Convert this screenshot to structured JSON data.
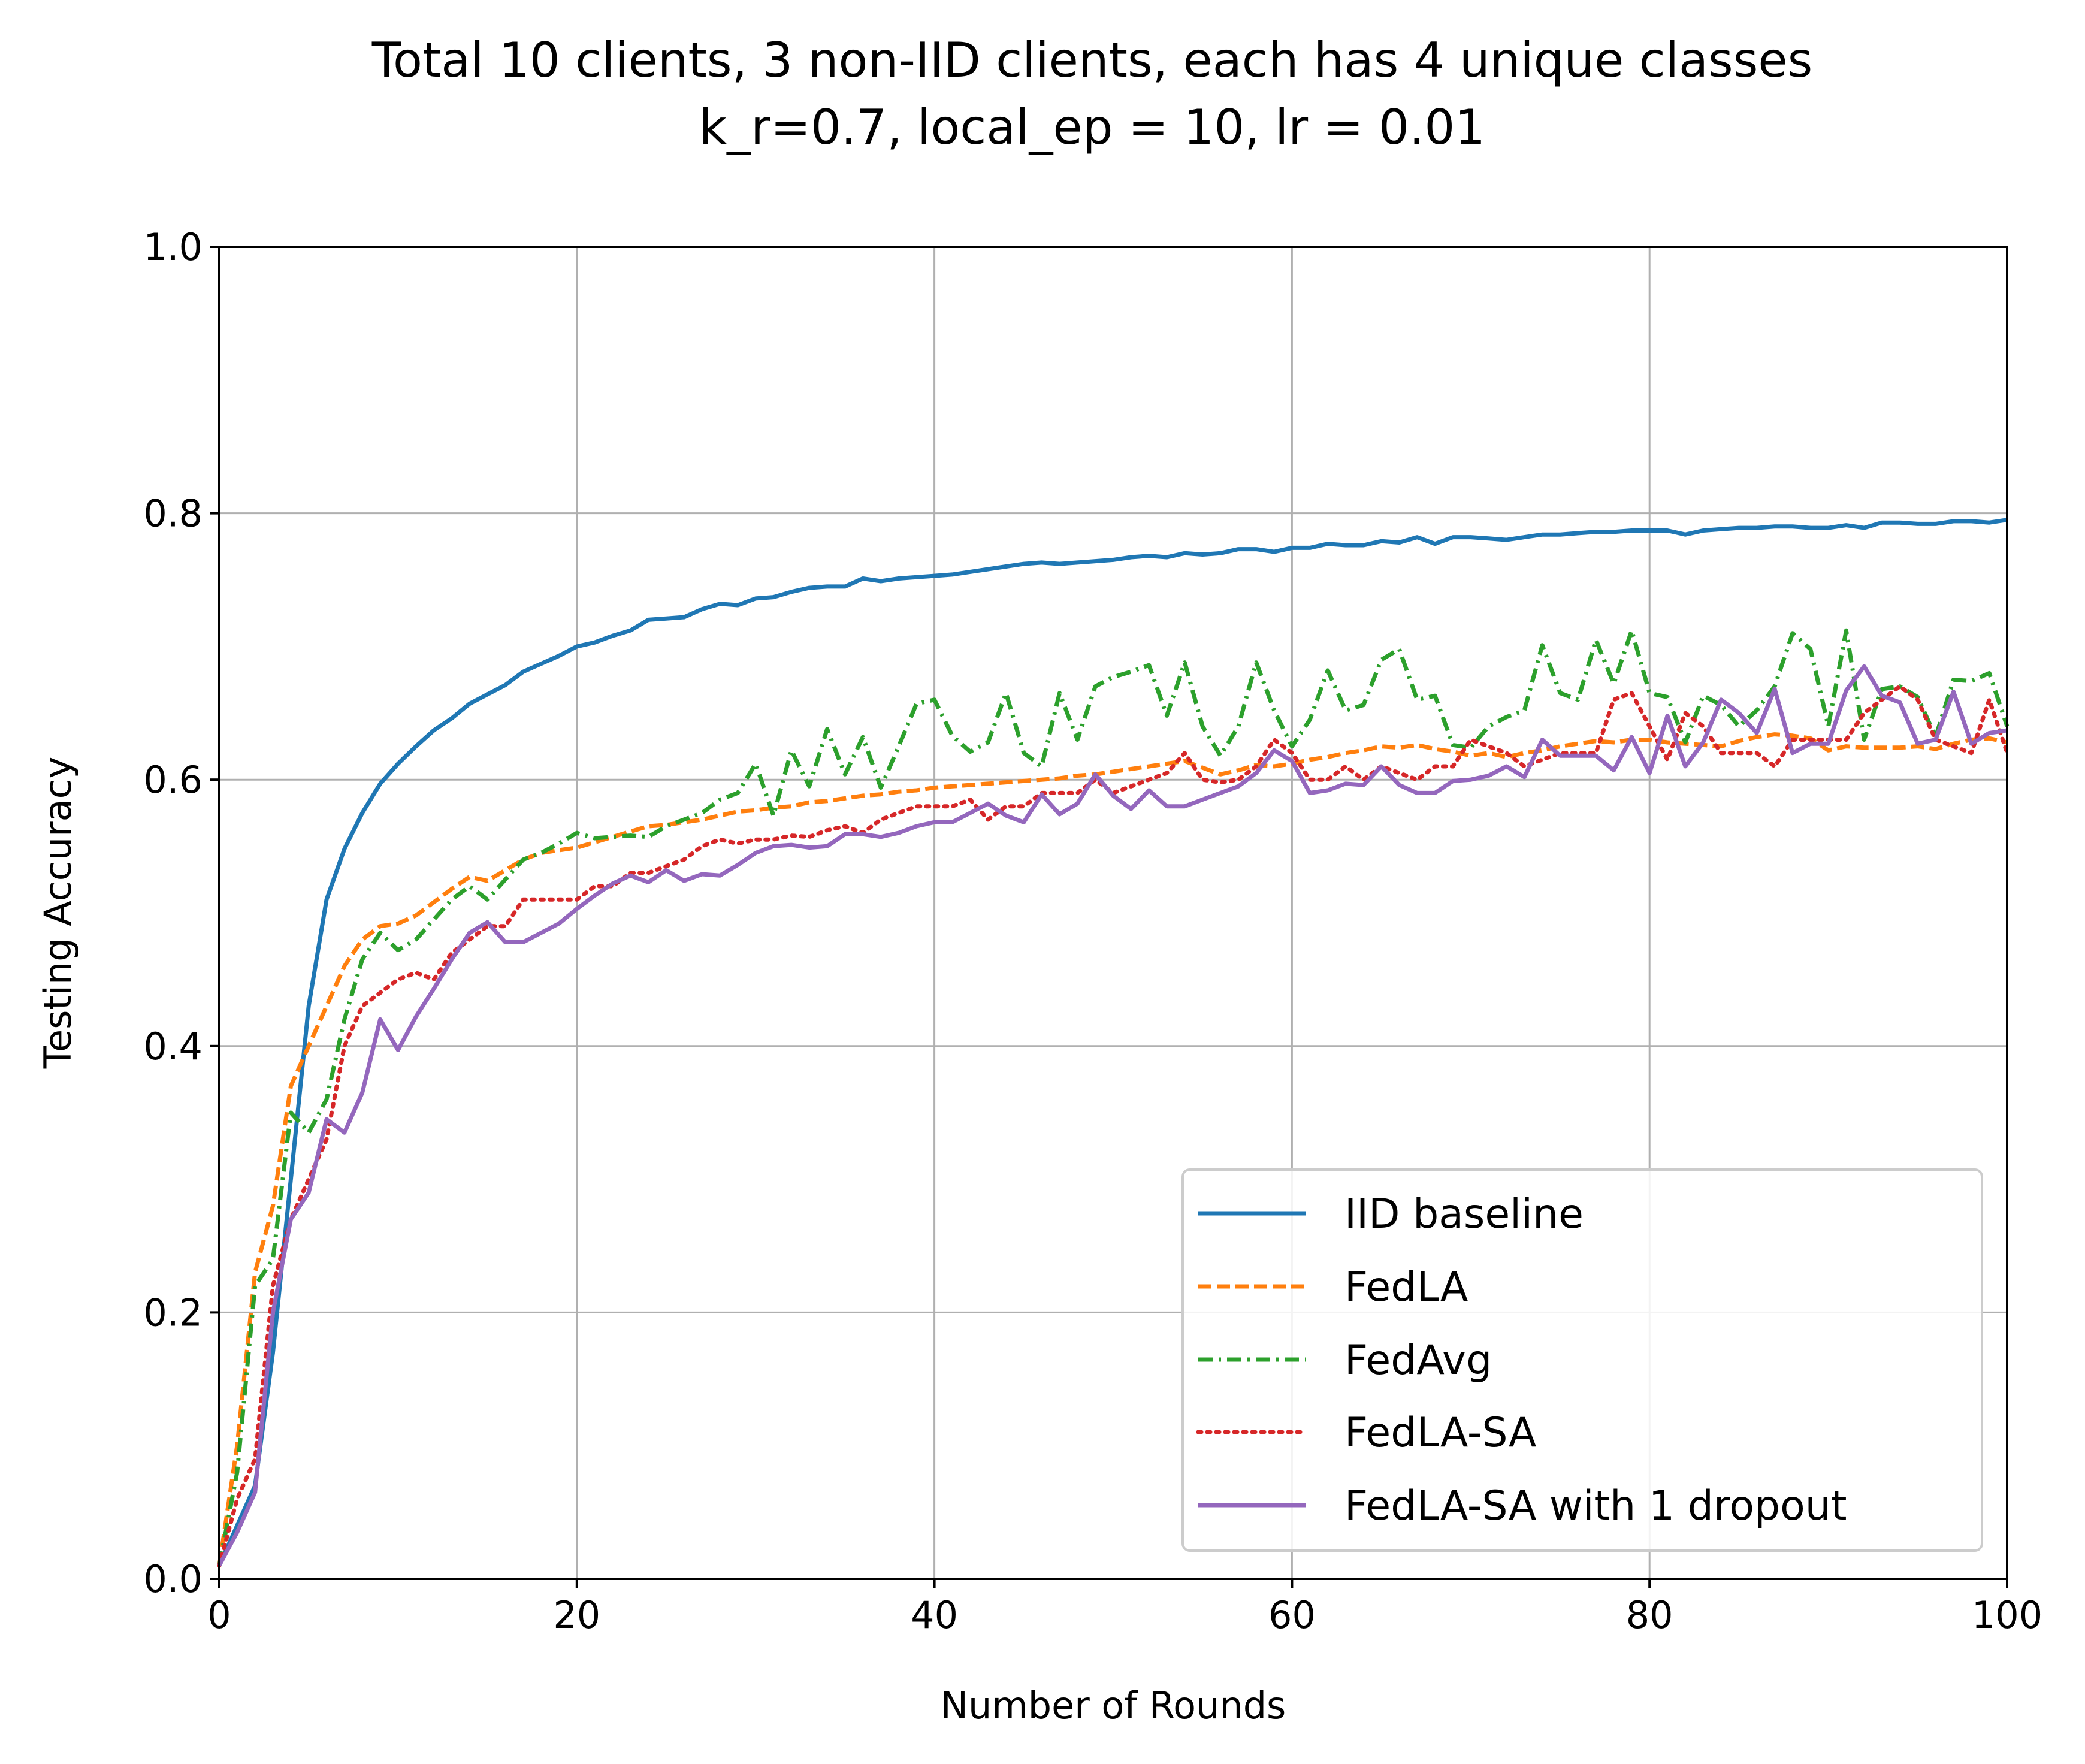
{
  "chart_data": {
    "type": "line",
    "title": "Total 10 clients, 3 non-IID clients, each has 4 unique classes",
    "subtitle": "k_r=0.7, local_ep = 10, lr = 0.01",
    "xlabel": "Number of Rounds",
    "ylabel": "Testing Accuracy",
    "xlim": [
      0,
      100
    ],
    "ylim": [
      0.0,
      1.0
    ],
    "x_ticks": [
      0,
      20,
      40,
      60,
      80,
      100
    ],
    "x_tick_labels": [
      "0",
      "20",
      "40",
      "60",
      "80",
      "100"
    ],
    "y_ticks": [
      0.0,
      0.2,
      0.4,
      0.6,
      0.8,
      1.0
    ],
    "y_tick_labels": [
      "0.0",
      "0.2",
      "0.4",
      "0.6",
      "0.8",
      "1.0"
    ],
    "grid": true,
    "legend_position": "lower-right",
    "series": [
      {
        "name": "IID baseline",
        "color": "#1f77b4",
        "dash": "solid",
        "x": [
          0,
          1,
          2,
          3,
          4,
          5,
          6,
          7,
          8,
          9,
          10,
          11,
          12,
          13,
          14,
          15,
          16,
          17,
          18,
          19,
          20,
          21,
          22,
          23,
          24,
          25,
          26,
          27,
          28,
          29,
          30,
          31,
          32,
          33,
          34,
          35,
          36,
          37,
          38,
          39,
          40,
          41,
          42,
          43,
          44,
          45,
          46,
          47,
          48,
          49,
          50,
          51,
          52,
          53,
          54,
          55,
          56,
          57,
          58,
          59,
          60,
          61,
          62,
          63,
          64,
          65,
          66,
          67,
          68,
          69,
          70,
          71,
          72,
          73,
          74,
          75,
          76,
          77,
          78,
          79,
          80,
          81,
          82,
          83,
          84,
          85,
          86,
          87,
          88,
          89,
          90,
          91,
          92,
          93,
          94,
          95,
          96,
          97,
          98,
          99,
          100
        ],
        "values": [
          0.01,
          0.04,
          0.07,
          0.17,
          0.3,
          0.43,
          0.51,
          0.548,
          0.575,
          0.597,
          0.612,
          0.625,
          0.637,
          0.646,
          0.657,
          0.664,
          0.671,
          0.681,
          0.687,
          0.693,
          0.7,
          0.703,
          0.708,
          0.712,
          0.72,
          0.721,
          0.722,
          0.728,
          0.732,
          0.731,
          0.736,
          0.737,
          0.741,
          0.744,
          0.745,
          0.745,
          0.751,
          0.749,
          0.751,
          0.752,
          0.753,
          0.754,
          0.756,
          0.758,
          0.76,
          0.762,
          0.763,
          0.762,
          0.763,
          0.764,
          0.765,
          0.767,
          0.768,
          0.767,
          0.77,
          0.769,
          0.77,
          0.773,
          0.773,
          0.771,
          0.774,
          0.774,
          0.777,
          0.776,
          0.776,
          0.779,
          0.778,
          0.782,
          0.777,
          0.782,
          0.782,
          0.781,
          0.78,
          0.782,
          0.784,
          0.784,
          0.785,
          0.786,
          0.786,
          0.787,
          0.787,
          0.787,
          0.784,
          0.787,
          0.788,
          0.789,
          0.789,
          0.79,
          0.79,
          0.789,
          0.789,
          0.791,
          0.789,
          0.793,
          0.793,
          0.792,
          0.792,
          0.794,
          0.794,
          0.793,
          0.795
        ]
      },
      {
        "name": "FedLA",
        "color": "#ff7f0e",
        "dash": "dashed",
        "x": [
          0,
          1,
          2,
          3,
          4,
          5,
          6,
          7,
          8,
          9,
          10,
          11,
          12,
          13,
          14,
          15,
          16,
          17,
          18,
          19,
          20,
          21,
          22,
          23,
          24,
          25,
          26,
          27,
          28,
          29,
          30,
          31,
          32,
          33,
          34,
          35,
          36,
          37,
          38,
          39,
          40,
          41,
          42,
          43,
          44,
          45,
          46,
          47,
          48,
          49,
          50,
          51,
          52,
          53,
          54,
          55,
          56,
          57,
          58,
          59,
          60,
          61,
          62,
          63,
          64,
          65,
          66,
          67,
          68,
          69,
          70,
          71,
          72,
          73,
          74,
          75,
          76,
          77,
          78,
          79,
          80,
          81,
          82,
          83,
          84,
          85,
          86,
          87,
          88,
          89,
          90,
          91,
          92,
          93,
          94,
          95,
          96,
          97,
          98,
          99,
          100
        ],
        "values": [
          0.01,
          0.1,
          0.23,
          0.28,
          0.37,
          0.4,
          0.43,
          0.46,
          0.48,
          0.49,
          0.492,
          0.498,
          0.508,
          0.518,
          0.527,
          0.524,
          0.532,
          0.54,
          0.545,
          0.547,
          0.549,
          0.553,
          0.557,
          0.561,
          0.565,
          0.566,
          0.568,
          0.57,
          0.573,
          0.576,
          0.577,
          0.579,
          0.58,
          0.583,
          0.584,
          0.586,
          0.588,
          0.589,
          0.591,
          0.592,
          0.594,
          0.595,
          0.596,
          0.597,
          0.598,
          0.599,
          0.6,
          0.601,
          0.603,
          0.604,
          0.606,
          0.608,
          0.61,
          0.612,
          0.614,
          0.609,
          0.604,
          0.607,
          0.611,
          0.61,
          0.612,
          0.615,
          0.617,
          0.62,
          0.622,
          0.625,
          0.624,
          0.626,
          0.623,
          0.621,
          0.618,
          0.62,
          0.617,
          0.62,
          0.622,
          0.625,
          0.627,
          0.629,
          0.628,
          0.63,
          0.63,
          0.628,
          0.627,
          0.626,
          0.625,
          0.629,
          0.632,
          0.634,
          0.633,
          0.631,
          0.622,
          0.625,
          0.624,
          0.624,
          0.624,
          0.625,
          0.623,
          0.627,
          0.63,
          0.631,
          0.628
        ]
      },
      {
        "name": "FedAvg",
        "color": "#2ca02c",
        "dash": "dashdot",
        "x": [
          0,
          1,
          2,
          3,
          4,
          5,
          6,
          7,
          8,
          9,
          10,
          11,
          12,
          13,
          14,
          15,
          16,
          17,
          18,
          19,
          20,
          21,
          22,
          23,
          24,
          25,
          26,
          27,
          28,
          29,
          30,
          31,
          32,
          33,
          34,
          35,
          36,
          37,
          38,
          39,
          40,
          41,
          42,
          43,
          44,
          45,
          46,
          47,
          48,
          49,
          50,
          51,
          52,
          53,
          54,
          55,
          56,
          57,
          58,
          59,
          60,
          61,
          62,
          63,
          64,
          65,
          66,
          67,
          68,
          69,
          70,
          71,
          72,
          73,
          74,
          75,
          76,
          77,
          78,
          79,
          80,
          81,
          82,
          83,
          84,
          85,
          86,
          87,
          88,
          89,
          90,
          91,
          92,
          93,
          94,
          95,
          96,
          97,
          98,
          99,
          100
        ],
        "values": [
          0.01,
          0.08,
          0.22,
          0.24,
          0.35,
          0.335,
          0.36,
          0.42,
          0.465,
          0.485,
          0.472,
          0.48,
          0.495,
          0.51,
          0.52,
          0.51,
          0.525,
          0.54,
          0.545,
          0.552,
          0.56,
          0.556,
          0.557,
          0.558,
          0.557,
          0.565,
          0.57,
          0.575,
          0.585,
          0.59,
          0.612,
          0.573,
          0.622,
          0.595,
          0.638,
          0.604,
          0.632,
          0.594,
          0.625,
          0.657,
          0.66,
          0.633,
          0.621,
          0.628,
          0.665,
          0.62,
          0.61,
          0.665,
          0.63,
          0.67,
          0.677,
          0.681,
          0.686,
          0.648,
          0.688,
          0.64,
          0.618,
          0.64,
          0.688,
          0.652,
          0.625,
          0.645,
          0.682,
          0.652,
          0.656,
          0.69,
          0.698,
          0.66,
          0.663,
          0.626,
          0.624,
          0.64,
          0.647,
          0.652,
          0.701,
          0.665,
          0.66,
          0.705,
          0.672,
          0.712,
          0.665,
          0.662,
          0.628,
          0.663,
          0.656,
          0.64,
          0.652,
          0.67,
          0.71,
          0.698,
          0.64,
          0.712,
          0.63,
          0.668,
          0.67,
          0.662,
          0.632,
          0.675,
          0.674,
          0.68,
          0.64
        ]
      },
      {
        "name": "FedLA-SA",
        "color": "#d62728",
        "dash": "dotted",
        "x": [
          0,
          1,
          2,
          3,
          4,
          5,
          6,
          7,
          8,
          9,
          10,
          11,
          12,
          13,
          14,
          15,
          16,
          17,
          18,
          19,
          20,
          21,
          22,
          23,
          24,
          25,
          26,
          27,
          28,
          29,
          30,
          31,
          32,
          33,
          34,
          35,
          36,
          37,
          38,
          39,
          40,
          41,
          42,
          43,
          44,
          45,
          46,
          47,
          48,
          49,
          50,
          51,
          52,
          53,
          54,
          55,
          56,
          57,
          58,
          59,
          60,
          61,
          62,
          63,
          64,
          65,
          66,
          67,
          68,
          69,
          70,
          71,
          72,
          73,
          74,
          75,
          76,
          77,
          78,
          79,
          80,
          81,
          82,
          83,
          84,
          85,
          86,
          87,
          88,
          89,
          90,
          91,
          92,
          93,
          94,
          95,
          96,
          97,
          98,
          99,
          100
        ],
        "values": [
          0.01,
          0.06,
          0.09,
          0.22,
          0.27,
          0.3,
          0.33,
          0.4,
          0.43,
          0.44,
          0.45,
          0.455,
          0.45,
          0.47,
          0.48,
          0.49,
          0.49,
          0.51,
          0.51,
          0.51,
          0.51,
          0.52,
          0.52,
          0.53,
          0.53,
          0.535,
          0.54,
          0.55,
          0.555,
          0.552,
          0.555,
          0.555,
          0.558,
          0.557,
          0.562,
          0.565,
          0.56,
          0.57,
          0.575,
          0.58,
          0.58,
          0.58,
          0.585,
          0.57,
          0.58,
          0.58,
          0.59,
          0.59,
          0.59,
          0.6,
          0.59,
          0.595,
          0.6,
          0.605,
          0.62,
          0.6,
          0.598,
          0.6,
          0.61,
          0.63,
          0.62,
          0.6,
          0.6,
          0.61,
          0.6,
          0.61,
          0.605,
          0.6,
          0.61,
          0.61,
          0.63,
          0.625,
          0.62,
          0.61,
          0.615,
          0.62,
          0.62,
          0.62,
          0.66,
          0.665,
          0.64,
          0.615,
          0.65,
          0.64,
          0.62,
          0.62,
          0.62,
          0.61,
          0.63,
          0.63,
          0.63,
          0.63,
          0.65,
          0.66,
          0.67,
          0.66,
          0.63,
          0.625,
          0.62,
          0.66,
          0.62
        ]
      },
      {
        "name": "FedLA-SA with 1 dropout",
        "color": "#9467bd",
        "dash": "solid",
        "x": [
          0,
          1,
          2,
          3,
          4,
          5,
          6,
          7,
          8,
          9,
          10,
          11,
          12,
          13,
          14,
          15,
          16,
          17,
          18,
          19,
          20,
          21,
          22,
          23,
          24,
          25,
          26,
          27,
          28,
          29,
          30,
          31,
          32,
          33,
          34,
          35,
          36,
          37,
          38,
          39,
          40,
          41,
          42,
          43,
          44,
          45,
          46,
          47,
          48,
          49,
          50,
          51,
          52,
          53,
          54,
          55,
          56,
          57,
          58,
          59,
          60,
          61,
          62,
          63,
          64,
          65,
          66,
          67,
          68,
          69,
          70,
          71,
          72,
          73,
          74,
          75,
          76,
          77,
          78,
          79,
          80,
          81,
          82,
          83,
          84,
          85,
          86,
          87,
          88,
          89,
          90,
          91,
          92,
          93,
          94,
          95,
          96,
          97,
          98,
          99,
          100
        ],
        "values": [
          0.01,
          0.035,
          0.065,
          0.2,
          0.27,
          0.29,
          0.345,
          0.335,
          0.365,
          0.42,
          0.397,
          0.422,
          0.443,
          0.465,
          0.485,
          0.493,
          0.478,
          0.478,
          0.485,
          0.492,
          0.503,
          0.513,
          0.522,
          0.528,
          0.523,
          0.532,
          0.524,
          0.529,
          0.528,
          0.536,
          0.545,
          0.55,
          0.551,
          0.549,
          0.55,
          0.559,
          0.559,
          0.557,
          0.56,
          0.565,
          0.568,
          0.568,
          0.575,
          0.582,
          0.573,
          0.568,
          0.589,
          0.574,
          0.582,
          0.604,
          0.588,
          0.578,
          0.592,
          0.58,
          0.58,
          0.585,
          0.59,
          0.595,
          0.605,
          0.622,
          0.614,
          0.59,
          0.592,
          0.597,
          0.596,
          0.61,
          0.596,
          0.59,
          0.59,
          0.599,
          0.6,
          0.603,
          0.61,
          0.602,
          0.63,
          0.618,
          0.618,
          0.618,
          0.607,
          0.632,
          0.605,
          0.648,
          0.61,
          0.628,
          0.66,
          0.65,
          0.635,
          0.668,
          0.62,
          0.627,
          0.627,
          0.667,
          0.685,
          0.663,
          0.658,
          0.627,
          0.63,
          0.666,
          0.627,
          0.635,
          0.637
        ]
      }
    ]
  }
}
